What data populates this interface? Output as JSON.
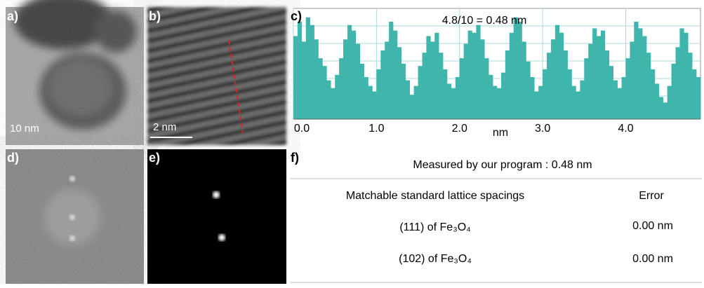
{
  "panel_labels": [
    "a)",
    "b)",
    "c)",
    "d)",
    "e)",
    "f)"
  ],
  "scale_bars": [
    "10 nm",
    "2 nm"
  ],
  "chart_data": {
    "type": "bar",
    "annotation": "4.8/10 = 0.48 nm",
    "x_label": "nm",
    "color": "#3fb5ac",
    "grid": true,
    "x": [
      0,
      0.05,
      0.1,
      0.15,
      0.2,
      0.25,
      0.3,
      0.35,
      0.4,
      0.45,
      0.5,
      0.55,
      0.6,
      0.65,
      0.7,
      0.75,
      0.8,
      0.85,
      0.9,
      0.95,
      1,
      1.05,
      1.1,
      1.15,
      1.2,
      1.25,
      1.3,
      1.35,
      1.4,
      1.45,
      1.5,
      1.55,
      1.6,
      1.65,
      1.7,
      1.75,
      1.8,
      1.85,
      1.9,
      1.95,
      2,
      2.05,
      2.1,
      2.15,
      2.2,
      2.25,
      2.3,
      2.35,
      2.4,
      2.45,
      2.5,
      2.55,
      2.6,
      2.65,
      2.7,
      2.75,
      2.8,
      2.85,
      2.9,
      2.95,
      3,
      3.05,
      3.1,
      3.15,
      3.2,
      3.25,
      3.3,
      3.35,
      3.4,
      3.45,
      3.5,
      3.55,
      3.6,
      3.65,
      3.7,
      3.75,
      3.8,
      3.85,
      3.9,
      3.95,
      4,
      4.05,
      4.1,
      4.15,
      4.2,
      4.25,
      4.3,
      4.35,
      4.4,
      4.45,
      4.5,
      4.55,
      4.6,
      4.65,
      4.7,
      4.75,
      4.8,
      4.85,
      4.9
    ],
    "values": [
      75,
      88,
      70,
      92,
      85,
      72,
      55,
      48,
      35,
      28,
      40,
      55,
      72,
      85,
      80,
      68,
      50,
      38,
      30,
      25,
      45,
      62,
      70,
      88,
      80,
      65,
      50,
      35,
      22,
      30,
      48,
      60,
      75,
      70,
      78,
      60,
      45,
      32,
      28,
      38,
      55,
      68,
      80,
      78,
      85,
      72,
      55,
      40,
      30,
      28,
      42,
      62,
      78,
      92,
      88,
      70,
      52,
      38,
      25,
      30,
      45,
      60,
      72,
      85,
      78,
      62,
      45,
      30,
      25,
      35,
      55,
      68,
      82,
      75,
      80,
      62,
      48,
      35,
      28,
      38,
      55,
      70,
      88,
      82,
      75,
      60,
      45,
      32,
      20,
      15,
      30,
      50,
      65,
      82,
      78,
      60,
      45,
      38,
      30
    ],
    "xlim": [
      0,
      4.9
    ],
    "ylim": [
      0,
      100
    ],
    "xticks": [
      {
        "value": 0,
        "label": "0.0"
      },
      {
        "value": 1,
        "label": "1.0"
      },
      {
        "value": 2,
        "label": "2.0"
      },
      {
        "value": 3,
        "label": "3.0"
      },
      {
        "value": 4,
        "label": "4.0"
      }
    ]
  },
  "table": {
    "title": "Measured by our program : 0.48 nm",
    "headers": [
      "Matchable standard lattice spacings",
      "Error"
    ],
    "rows": [
      [
        "(111) of Fe₃O₄",
        "0.00 nm"
      ],
      [
        "(102) of Fe₃O₄",
        "0.00 nm"
      ]
    ]
  }
}
